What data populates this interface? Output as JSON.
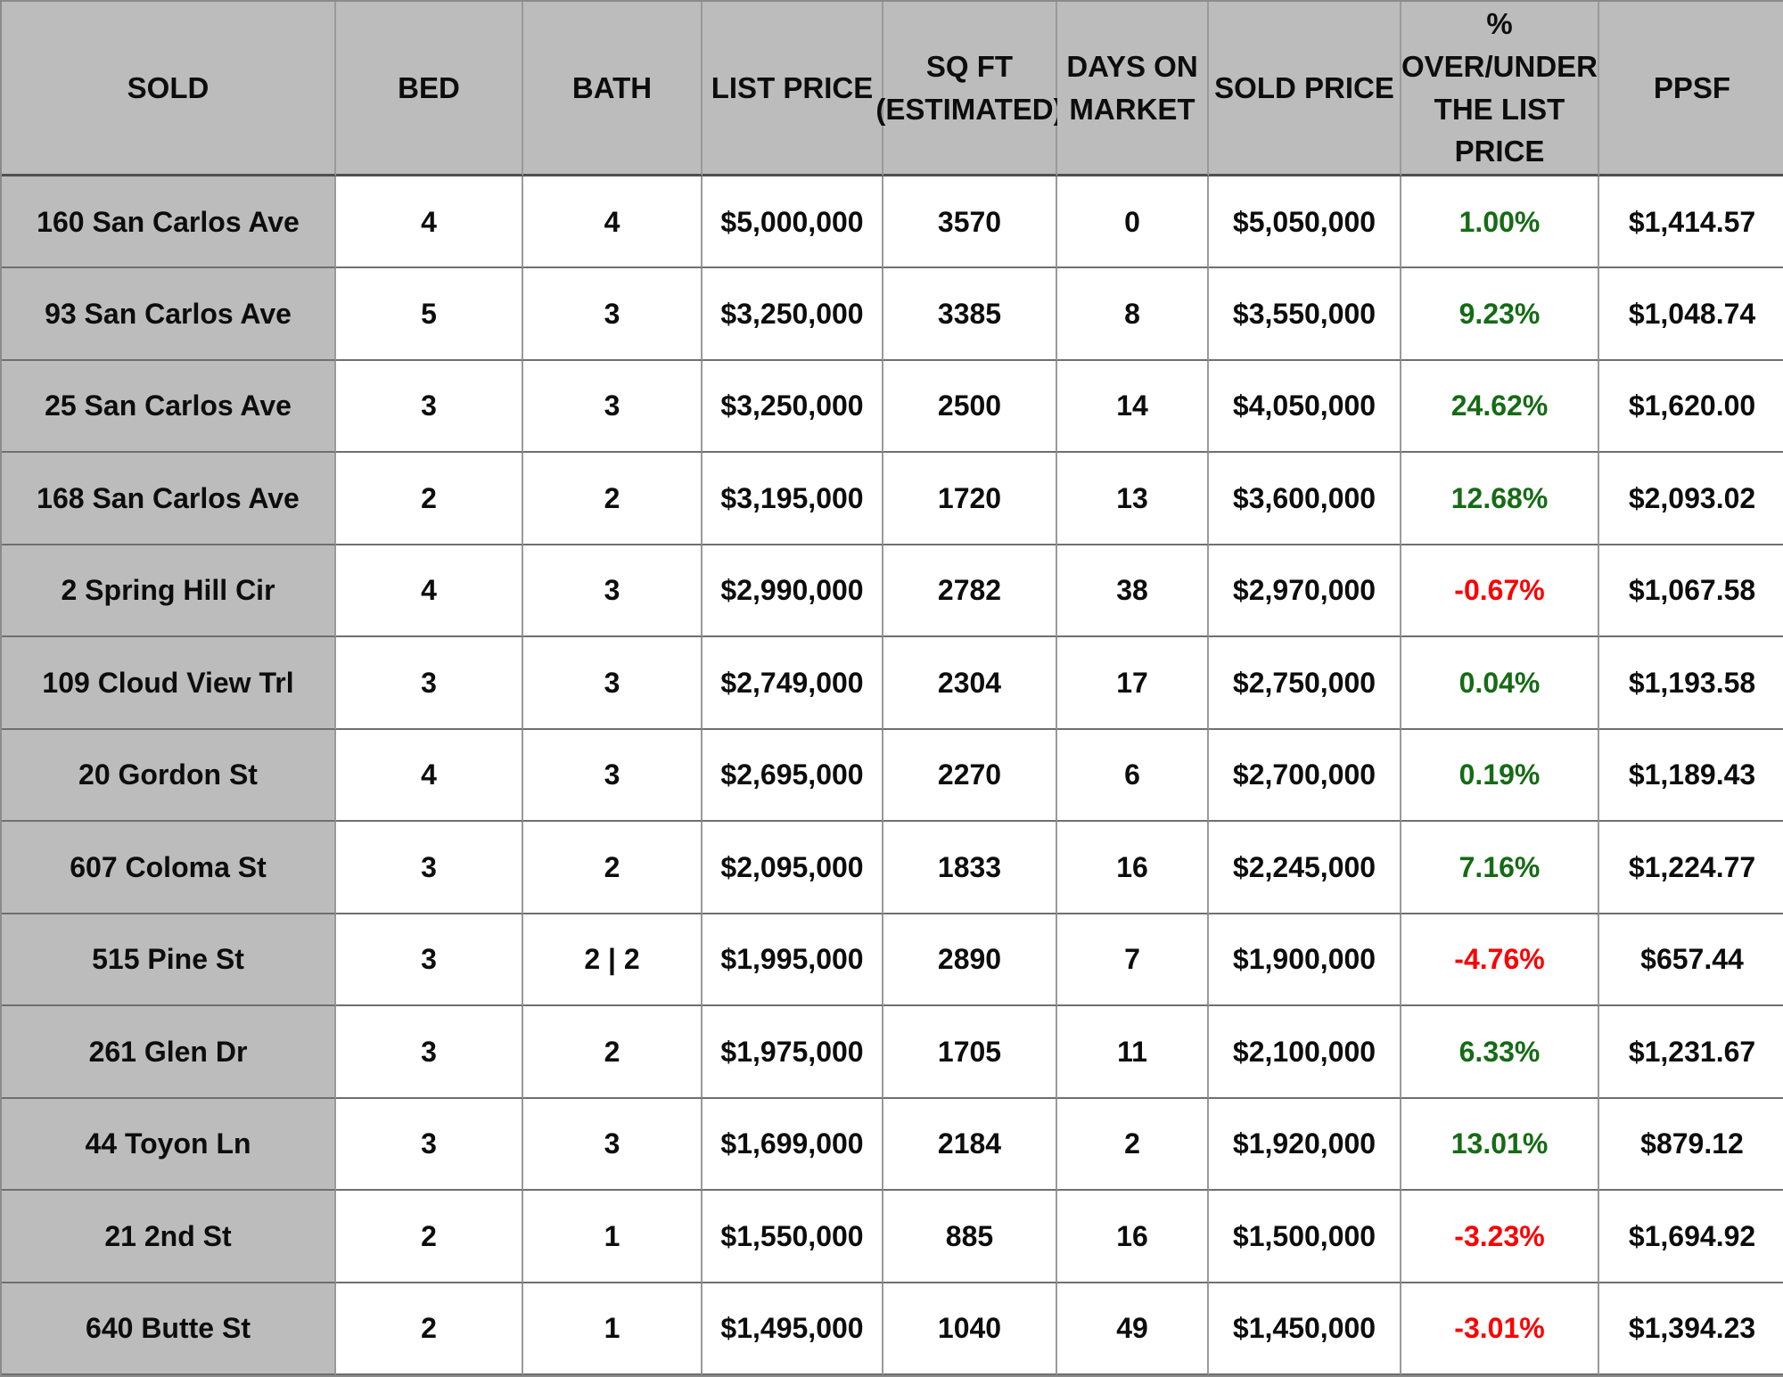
{
  "colors": {
    "positive_pct": "#166b16",
    "negative_pct": "#fb0000",
    "header_bg": "#bcbcbc",
    "grid_line_vertical": "#9a9a9a",
    "grid_line_horizontal": "#6f6f6f",
    "text": "#0d0d0d"
  },
  "table": {
    "columns": [
      {
        "key": "address",
        "label": "SOLD",
        "lines": [
          "SOLD"
        ]
      },
      {
        "key": "bed",
        "label": "BED",
        "lines": [
          "BED"
        ]
      },
      {
        "key": "bath",
        "label": "BATH",
        "lines": [
          "BATH"
        ]
      },
      {
        "key": "list_price",
        "label": "LIST PRICE",
        "lines": [
          "LIST PRICE"
        ]
      },
      {
        "key": "sqft",
        "label": "SQ FT (ESTIMATED)",
        "lines": [
          "SQ FT",
          "(ESTIMATED)"
        ]
      },
      {
        "key": "dom",
        "label": "DAYS ON MARKET",
        "lines": [
          "DAYS ON",
          "MARKET"
        ]
      },
      {
        "key": "sold_price",
        "label": "SOLD PRICE",
        "lines": [
          "SOLD PRICE"
        ]
      },
      {
        "key": "pct",
        "label": "% OVER/UNDER THE LIST PRICE",
        "lines": [
          "%",
          "OVER/UNDER",
          "THE LIST",
          "PRICE"
        ]
      },
      {
        "key": "ppsf",
        "label": "PPSF",
        "lines": [
          "PPSF"
        ]
      }
    ],
    "rows": [
      {
        "address": "160 San Carlos Ave",
        "bed": "4",
        "bath": "4",
        "list_price": "$5,000,000",
        "sqft": "3570",
        "dom": "0",
        "sold_price": "$5,050,000",
        "pct": "1.00%",
        "trend": "up",
        "ppsf": "$1,414.57"
      },
      {
        "address": "93 San Carlos Ave",
        "bed": "5",
        "bath": "3",
        "list_price": "$3,250,000",
        "sqft": "3385",
        "dom": "8",
        "sold_price": "$3,550,000",
        "pct": "9.23%",
        "trend": "up",
        "ppsf": "$1,048.74"
      },
      {
        "address": "25 San Carlos Ave",
        "bed": "3",
        "bath": "3",
        "list_price": "$3,250,000",
        "sqft": "2500",
        "dom": "14",
        "sold_price": "$4,050,000",
        "pct": "24.62%",
        "trend": "up",
        "ppsf": "$1,620.00"
      },
      {
        "address": "168 San Carlos Ave",
        "bed": "2",
        "bath": "2",
        "list_price": "$3,195,000",
        "sqft": "1720",
        "dom": "13",
        "sold_price": "$3,600,000",
        "pct": "12.68%",
        "trend": "up",
        "ppsf": "$2,093.02"
      },
      {
        "address": "2 Spring Hill Cir",
        "bed": "4",
        "bath": "3",
        "list_price": "$2,990,000",
        "sqft": "2782",
        "dom": "38",
        "sold_price": "$2,970,000",
        "pct": "-0.67%",
        "trend": "down",
        "ppsf": "$1,067.58"
      },
      {
        "address": "109 Cloud View Trl",
        "bed": "3",
        "bath": "3",
        "list_price": "$2,749,000",
        "sqft": "2304",
        "dom": "17",
        "sold_price": "$2,750,000",
        "pct": "0.04%",
        "trend": "up",
        "ppsf": "$1,193.58"
      },
      {
        "address": "20 Gordon St",
        "bed": "4",
        "bath": "3",
        "list_price": "$2,695,000",
        "sqft": "2270",
        "dom": "6",
        "sold_price": "$2,700,000",
        "pct": "0.19%",
        "trend": "up",
        "ppsf": "$1,189.43"
      },
      {
        "address": "607 Coloma St",
        "bed": "3",
        "bath": "2",
        "list_price": "$2,095,000",
        "sqft": "1833",
        "dom": "16",
        "sold_price": "$2,245,000",
        "pct": "7.16%",
        "trend": "up",
        "ppsf": "$1,224.77"
      },
      {
        "address": "515 Pine St",
        "bed": "3",
        "bath": "2 | 2",
        "list_price": "$1,995,000",
        "sqft": "2890",
        "dom": "7",
        "sold_price": "$1,900,000",
        "pct": "-4.76%",
        "trend": "down",
        "ppsf": "$657.44"
      },
      {
        "address": "261 Glen Dr",
        "bed": "3",
        "bath": "2",
        "list_price": "$1,975,000",
        "sqft": "1705",
        "dom": "11",
        "sold_price": "$2,100,000",
        "pct": "6.33%",
        "trend": "up",
        "ppsf": "$1,231.67"
      },
      {
        "address": "44 Toyon Ln",
        "bed": "3",
        "bath": "3",
        "list_price": "$1,699,000",
        "sqft": "2184",
        "dom": "2",
        "sold_price": "$1,920,000",
        "pct": "13.01%",
        "trend": "up",
        "ppsf": "$879.12"
      },
      {
        "address": "21 2nd St",
        "bed": "2",
        "bath": "1",
        "list_price": "$1,550,000",
        "sqft": "885",
        "dom": "16",
        "sold_price": "$1,500,000",
        "pct": "-3.23%",
        "trend": "down",
        "ppsf": "$1,694.92"
      },
      {
        "address": "640 Butte St",
        "bed": "2",
        "bath": "1",
        "list_price": "$1,495,000",
        "sqft": "1040",
        "dom": "49",
        "sold_price": "$1,450,000",
        "pct": "-3.01%",
        "trend": "down",
        "ppsf": "$1,394.23"
      }
    ]
  }
}
